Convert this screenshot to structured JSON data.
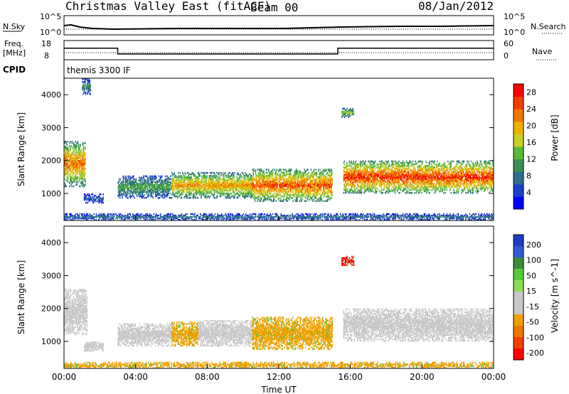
{
  "header": {
    "title": "Christmas Valley East (fitACF)",
    "beam": "Beam 00",
    "date": "08/Jan/2012",
    "mode": "themis 3300 IF",
    "cpid_label": "CPID"
  },
  "status_panels": {
    "nsky_label": "N.Sky",
    "nsearch_label": "N.Search",
    "nsky_ticks": [
      "10^5",
      "10^0"
    ],
    "nsearch_ticks": [
      "10^5",
      "10^0"
    ],
    "freq_label": [
      "Freq.",
      "[MHz]"
    ],
    "freq_ticks": [
      "18",
      "8"
    ],
    "nave_label": "Nave",
    "nave_ticks": [
      "60",
      "0"
    ],
    "freq_steps": [
      {
        "start": 0.0,
        "end": 3.0,
        "mhz": 14
      },
      {
        "start": 3.0,
        "end": 15.3,
        "mhz": 11
      },
      {
        "start": 15.3,
        "end": 24.0,
        "mhz": 14
      }
    ]
  },
  "colors": {
    "power": [
      "#0000ff",
      "#1e3fcc",
      "#2f6e8f",
      "#3a8f55",
      "#5ab83c",
      "#c8d02a",
      "#f0b000",
      "#f07800",
      "#f04000",
      "#ff0000"
    ],
    "velocity": [
      "#1e3cc8",
      "#2e5ad2",
      "#3c8c3c",
      "#5ac83c",
      "#8cdc5a",
      "#c8c8c8",
      "#c8c8c8",
      "#f0a000",
      "#f07800",
      "#f04000",
      "#ff0000"
    ],
    "ground_scatter": "#c8c8c8"
  },
  "chart_data": [
    {
      "type": "heatmap",
      "name": "power",
      "xlabel": "",
      "ylabel": "Slant Range [km]",
      "xlim": [
        0,
        24
      ],
      "ylim": [
        180,
        4500
      ],
      "yticks": [
        "1000",
        "2000",
        "3000",
        "4000"
      ],
      "colorbar": {
        "label": "Power [dB]",
        "ticks": [
          "4",
          "8",
          "12",
          "16",
          "20",
          "24",
          "28"
        ],
        "range": [
          0,
          30
        ]
      },
      "regions": [
        {
          "t0": 0.0,
          "t1": 1.2,
          "r0": 1200,
          "r1": 2600,
          "peak": 26
        },
        {
          "t0": 1.0,
          "t1": 1.5,
          "r0": 4000,
          "r1": 4500,
          "peak": 12
        },
        {
          "t0": 1.1,
          "t1": 2.2,
          "r0": 700,
          "r1": 1000,
          "peak": 8
        },
        {
          "t0": 3.0,
          "t1": 6.0,
          "r0": 850,
          "r1": 1550,
          "peak": 14
        },
        {
          "t0": 6.0,
          "t1": 10.5,
          "r0": 850,
          "r1": 1650,
          "peak": 24
        },
        {
          "t0": 10.5,
          "t1": 15.0,
          "r0": 750,
          "r1": 1750,
          "peak": 28
        },
        {
          "t0": 15.5,
          "t1": 16.2,
          "r0": 3300,
          "r1": 3600,
          "peak": 18
        },
        {
          "t0": 15.6,
          "t1": 24.0,
          "r0": 1000,
          "r1": 2000,
          "peak": 30
        },
        {
          "t0": 0.0,
          "t1": 24.0,
          "r0": 180,
          "r1": 400,
          "peak": 10
        }
      ]
    },
    {
      "type": "heatmap",
      "name": "velocity",
      "xlabel": "Time UT",
      "ylabel": "Slant Range [km]",
      "xlim": [
        0,
        24
      ],
      "ylim": [
        180,
        4500
      ],
      "xticks": [
        "00:00",
        "04:00",
        "08:00",
        "12:00",
        "16:00",
        "20:00",
        "00:00"
      ],
      "yticks": [
        "1000",
        "2000",
        "3000",
        "4000"
      ],
      "colorbar": {
        "label": "Velocity [m s^-1]",
        "ticks": [
          "200",
          "100",
          "50",
          "15",
          "-15",
          "-50",
          "-100",
          "-200"
        ]
      },
      "regions": [
        {
          "t0": 0.0,
          "t1": 1.3,
          "r0": 1200,
          "r1": 2600,
          "v": "ground"
        },
        {
          "t0": 1.1,
          "t1": 2.2,
          "r0": 700,
          "r1": 1000,
          "v": "ground"
        },
        {
          "t0": 3.0,
          "t1": 6.0,
          "r0": 850,
          "r1": 1550,
          "v": "ground"
        },
        {
          "t0": 6.0,
          "t1": 7.5,
          "r0": 850,
          "r1": 1600,
          "v": -60
        },
        {
          "t0": 7.5,
          "t1": 10.5,
          "r0": 850,
          "r1": 1650,
          "v": "ground"
        },
        {
          "t0": 10.5,
          "t1": 15.0,
          "r0": 750,
          "r1": 1750,
          "v": -60
        },
        {
          "t0": 15.5,
          "t1": 16.2,
          "r0": 3300,
          "r1": 3600,
          "v": -200
        },
        {
          "t0": 15.6,
          "t1": 24.0,
          "r0": 1000,
          "r1": 2000,
          "v": "ground"
        },
        {
          "t0": 0.0,
          "t1": 24.0,
          "r0": 180,
          "r1": 380,
          "v": -60
        }
      ]
    }
  ]
}
